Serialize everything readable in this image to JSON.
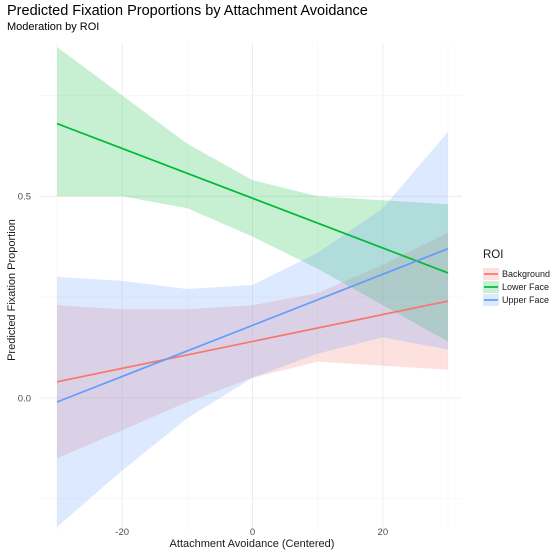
{
  "chart_data": {
    "type": "line",
    "title": "Predicted Fixation Proportions by Attachment Avoidance",
    "subtitle": "Moderation by ROI",
    "xlabel": "Attachment Avoidance (Centered)",
    "ylabel": "Predicted Fixation Proportion",
    "xlim": [
      -30,
      30
    ],
    "ylim": [
      -0.32,
      0.87
    ],
    "x_ticks": [
      -20,
      0,
      20
    ],
    "x_tick_labels": [
      "-20",
      "0",
      "20"
    ],
    "y_ticks": [
      0.0,
      0.5
    ],
    "y_tick_labels": [
      "0.0",
      "0.5"
    ],
    "grid": true,
    "legend_title": "ROI",
    "legend_position": "right",
    "series": [
      {
        "name": "Background",
        "color": "#F8766D",
        "x": [
          -30,
          30
        ],
        "y": [
          0.04,
          0.24
        ],
        "ci": {
          "x": [
            -30,
            -20,
            -10,
            0,
            10,
            20,
            30
          ],
          "lower": [
            -0.15,
            -0.08,
            -0.01,
            0.05,
            0.09,
            0.08,
            0.07
          ],
          "upper": [
            0.23,
            0.22,
            0.22,
            0.23,
            0.26,
            0.33,
            0.41
          ]
        }
      },
      {
        "name": "Lower Face",
        "color": "#00BA38",
        "x": [
          -30,
          30
        ],
        "y": [
          0.68,
          0.31
        ],
        "ci": {
          "x": [
            -30,
            -20,
            -10,
            0,
            10,
            20,
            30
          ],
          "lower": [
            0.5,
            0.5,
            0.47,
            0.4,
            0.32,
            0.23,
            0.14
          ],
          "upper": [
            0.87,
            0.75,
            0.63,
            0.54,
            0.5,
            0.49,
            0.48
          ]
        }
      },
      {
        "name": "Upper Face",
        "color": "#619CFF",
        "x": [
          -30,
          30
        ],
        "y": [
          -0.01,
          0.37
        ],
        "ci": {
          "x": [
            -30,
            -20,
            -10,
            0,
            10,
            20,
            30
          ],
          "lower": [
            -0.32,
            -0.18,
            -0.05,
            0.05,
            0.11,
            0.15,
            0.12
          ],
          "upper": [
            0.3,
            0.29,
            0.27,
            0.28,
            0.36,
            0.47,
            0.66
          ]
        }
      }
    ]
  }
}
